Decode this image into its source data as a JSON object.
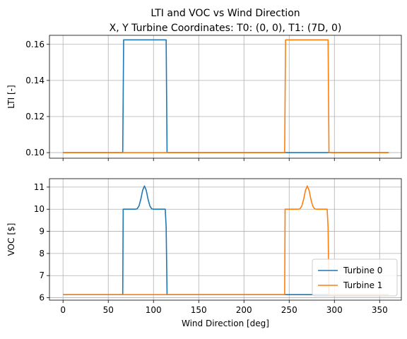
{
  "chart_data": {
    "type": "line",
    "title_line1": "LTI and VOC vs Wind Direction",
    "title_line2": "X, Y Turbine Coordinates: T0: (0, 0), T1: (7D, 0)",
    "xlabel": "Wind Direction [deg]",
    "xlim": [
      -15,
      374
    ],
    "xticks": [
      0,
      50,
      100,
      150,
      200,
      250,
      300,
      350
    ],
    "grid": true,
    "legend_location": "lower-right",
    "legend": [
      {
        "label": "Turbine 0",
        "color": "#1f77b4"
      },
      {
        "label": "Turbine 1",
        "color": "#ff7f0e"
      }
    ],
    "subplots": [
      {
        "ylabel": "LTI [-]",
        "ylim": [
          0.0969,
          0.165
        ],
        "yticks": [
          0.1,
          0.12,
          0.14,
          0.16
        ],
        "ytick_labels": [
          "0.10",
          "0.12",
          "0.14",
          "0.16"
        ],
        "series": [
          {
            "name": "Turbine 0",
            "color": "#1f77b4",
            "x": [
              0,
              66,
              67,
              114,
              115,
              245,
              246,
              293,
              294,
              360
            ],
            "y": [
              0.1,
              0.1,
              0.1625,
              0.1625,
              0.1,
              0.1,
              0.1,
              0.1,
              0.1,
              0.1
            ]
          },
          {
            "name": "Turbine 1",
            "color": "#ff7f0e",
            "x": [
              0,
              66,
              67,
              114,
              115,
              245,
              246,
              293,
              294,
              360
            ],
            "y": [
              0.1,
              0.1,
              0.1,
              0.1,
              0.1,
              0.1,
              0.1625,
              0.1625,
              0.1,
              0.1
            ]
          }
        ]
      },
      {
        "ylabel": "VOC [$]",
        "ylim": [
          5.89,
          11.38
        ],
        "yticks": [
          6,
          7,
          8,
          9,
          10,
          11
        ],
        "ytick_labels": [
          "6",
          "7",
          "8",
          "9",
          "10",
          "11"
        ],
        "series": [
          {
            "name": "Turbine 0",
            "color": "#1f77b4",
            "x": [
              0,
              66,
              66.5,
              80,
              82,
              84,
              86,
              88,
              90,
              92,
              94,
              96,
              98,
              100,
              113,
              114,
              115,
              245,
              246,
              293,
              294,
              360
            ],
            "y": [
              6.14,
              6.14,
              10.0,
              10.0,
              10.02,
              10.15,
              10.45,
              10.85,
              11.05,
              10.85,
              10.45,
              10.15,
              10.02,
              10.0,
              10.0,
              9.2,
              6.14,
              6.14,
              6.14,
              6.14,
              6.14,
              6.14
            ]
          },
          {
            "name": "Turbine 1",
            "color": "#ff7f0e",
            "x": [
              0,
              66,
              67,
              114,
              115,
              245,
              245.5,
              260,
              262,
              264,
              266,
              268,
              270,
              272,
              274,
              276,
              278,
              280,
              292,
              293,
              294,
              360
            ],
            "y": [
              6.14,
              6.14,
              6.14,
              6.14,
              6.14,
              6.14,
              10.0,
              10.0,
              10.02,
              10.15,
              10.45,
              10.85,
              11.05,
              10.85,
              10.45,
              10.15,
              10.02,
              10.0,
              10.0,
              9.2,
              6.14,
              6.14
            ]
          }
        ]
      }
    ]
  }
}
